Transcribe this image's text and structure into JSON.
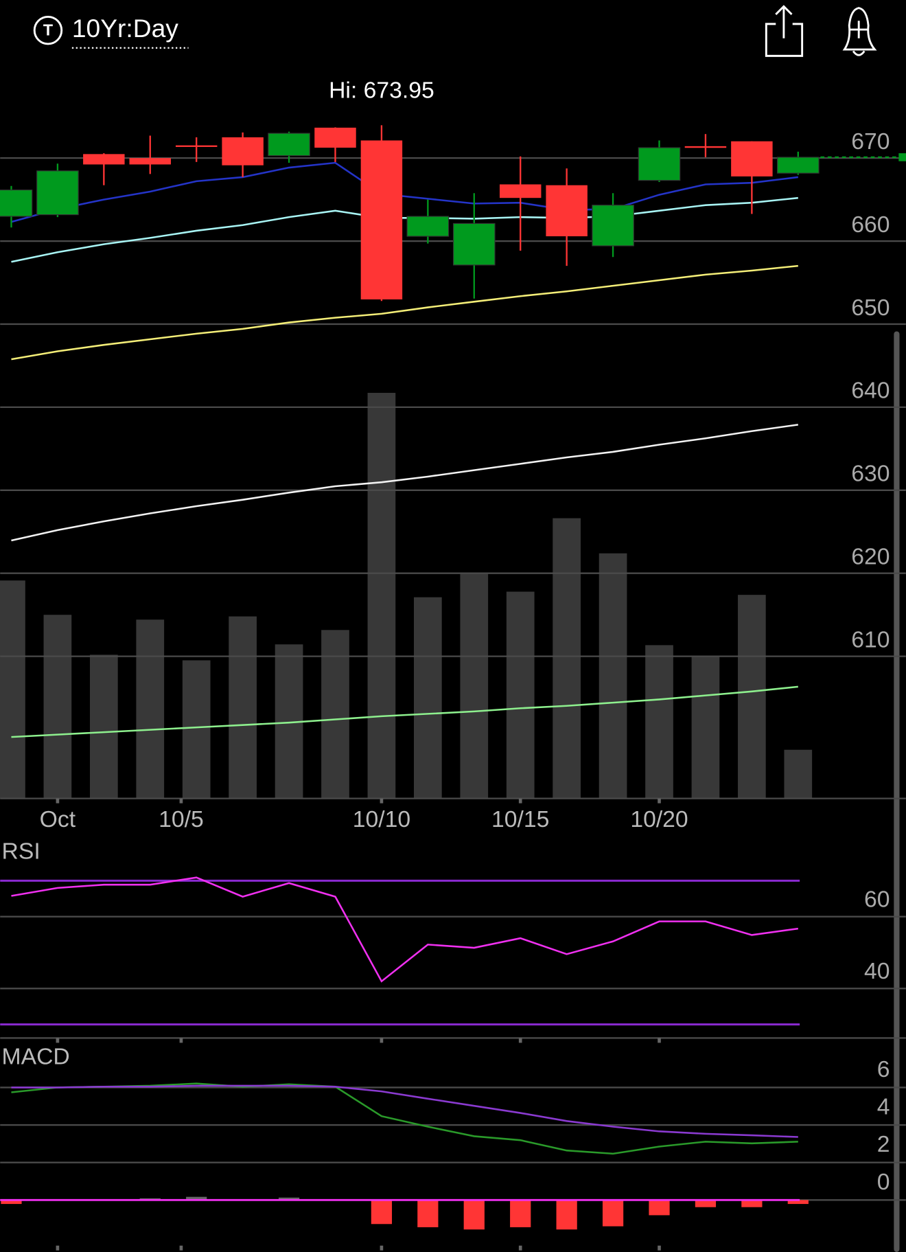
{
  "header": {
    "title": "10Yr:Day"
  },
  "chart_data": [
    {
      "type": "candlestick",
      "annotation": "Hi: 673.95",
      "categories": [
        null,
        null,
        null,
        null,
        null,
        null,
        null,
        null,
        null,
        null,
        null,
        null,
        null,
        null,
        null,
        null,
        null,
        null
      ],
      "open": [
        662.98,
        663.18,
        670.48,
        670.0,
        671.53,
        672.5,
        670.29,
        673.66,
        672.12,
        660.58,
        657.12,
        666.83,
        666.73,
        659.43,
        667.31,
        671.43,
        672.02,
        668.18
      ],
      "high": [
        666.64,
        669.33,
        670.58,
        672.7,
        672.5,
        673.08,
        673.18,
        673.7,
        673.95,
        665.0,
        665.77,
        670.2,
        668.75,
        665.77,
        672.12,
        672.89,
        672.02,
        670.77
      ],
      "low": [
        661.64,
        662.89,
        666.73,
        668.08,
        669.53,
        667.7,
        669.43,
        669.52,
        652.79,
        659.71,
        653.08,
        658.85,
        657.02,
        658.08,
        667.12,
        670.1,
        663.27,
        667.98
      ],
      "close": [
        666.16,
        668.46,
        669.23,
        669.23,
        671.43,
        669.13,
        672.98,
        671.25,
        652.98,
        662.98,
        662.12,
        665.2,
        660.58,
        664.33,
        671.25,
        671.23,
        667.79,
        670.1
      ],
      "up_color": "#009a1e",
      "down_color": "#ff3535",
      "ylim": [
        592.88,
        680.38
      ],
      "yticks": [
        610,
        620,
        630,
        640,
        650,
        660,
        670
      ],
      "xlim": [
        -0.241,
        19.328
      ],
      "xticks": [
        {
          "value": 1,
          "label": "Oct"
        },
        {
          "value": 3.67,
          "label": "10/5"
        },
        {
          "value": 8,
          "label": "10/10"
        },
        {
          "value": 11,
          "label": "10/15"
        },
        {
          "value": 14,
          "label": "10/20"
        }
      ],
      "overlays": [
        {
          "color": "#2434c8",
          "values": [
            662.31,
            663.85,
            665.0,
            665.96,
            667.21,
            667.7,
            668.85,
            669.43,
            665.68,
            665.1,
            664.52,
            664.62,
            663.75,
            663.85,
            665.58,
            666.83,
            667.02,
            667.7
          ]
        },
        {
          "color": "#a8f4f4",
          "values": [
            657.5,
            658.66,
            659.62,
            660.39,
            661.25,
            661.93,
            662.89,
            663.66,
            662.79,
            662.79,
            662.7,
            662.89,
            662.79,
            662.98,
            663.66,
            664.33,
            664.62,
            665.2
          ]
        },
        {
          "color": "#f4ee78",
          "values": [
            645.77,
            646.73,
            647.5,
            648.18,
            648.85,
            649.43,
            650.2,
            650.77,
            651.25,
            652.02,
            652.7,
            653.37,
            653.95,
            654.62,
            655.29,
            655.96,
            656.45,
            657.02
          ]
        },
        {
          "color": "#f2f2f2",
          "values": [
            623.95,
            625.2,
            626.25,
            627.21,
            628.08,
            628.85,
            629.71,
            630.48,
            630.96,
            631.64,
            632.41,
            633.18,
            633.95,
            634.62,
            635.48,
            636.25,
            637.12,
            637.89
          ]
        }
      ],
      "volume": {
        "color": "#383838",
        "ylim": [
          0,
          910
        ],
        "values": [
          273,
          230,
          180,
          224,
          173,
          228,
          193,
          211,
          508,
          252,
          282,
          259,
          351,
          307,
          192,
          178,
          255,
          61
        ],
        "average": {
          "color": "#8ef08e",
          "values": [
            77,
            80,
            83,
            86,
            89,
            92,
            95,
            99,
            103,
            106,
            109,
            113,
            116,
            120,
            124,
            129,
            134,
            140
          ]
        }
      }
    },
    {
      "type": "line",
      "title": "RSI",
      "ylim": [
        26.22,
        84
      ],
      "yticks": [
        40,
        60
      ],
      "levels": [
        70,
        30
      ],
      "level_color": "#8a2ad0",
      "series": [
        {
          "color": "#f030f0",
          "values": [
            65.78,
            68,
            68.89,
            68.89,
            70.89,
            65.56,
            69.33,
            65.56,
            42,
            52.22,
            51.33,
            54,
            49.56,
            53.11,
            58.67,
            58.67,
            54.89,
            56.67
          ]
        }
      ]
    },
    {
      "type": "macd",
      "title": "MACD",
      "ylim": [
        -2.43,
        8.21
      ],
      "yticks": [
        0,
        2,
        4,
        6
      ],
      "series": [
        {
          "color": "#2a9a2a",
          "values": [
            5.74,
            6,
            6.04,
            6.09,
            6.21,
            6.04,
            6.17,
            6.04,
            4.47,
            3.91,
            3.4,
            3.19,
            2.64,
            2.47,
            2.85,
            3.11,
            3.02,
            3.11
          ]
        },
        {
          "color": "#8a3ad0",
          "values": [
            6,
            6,
            6.04,
            6.04,
            6.09,
            6.09,
            6.09,
            6.04,
            5.79,
            5.4,
            5.02,
            4.64,
            4.21,
            3.91,
            3.66,
            3.53,
            3.45,
            3.36
          ]
        }
      ],
      "histogram": {
        "up_color": "#666666",
        "down_color": "#ff3535",
        "zero_color": "#f030f0",
        "values": [
          -0.21,
          0,
          0,
          0.09,
          0.17,
          0,
          0.13,
          0,
          -1.28,
          -1.45,
          -1.57,
          -1.45,
          -1.57,
          -1.4,
          -0.81,
          -0.38,
          -0.38,
          -0.21
        ]
      }
    }
  ]
}
